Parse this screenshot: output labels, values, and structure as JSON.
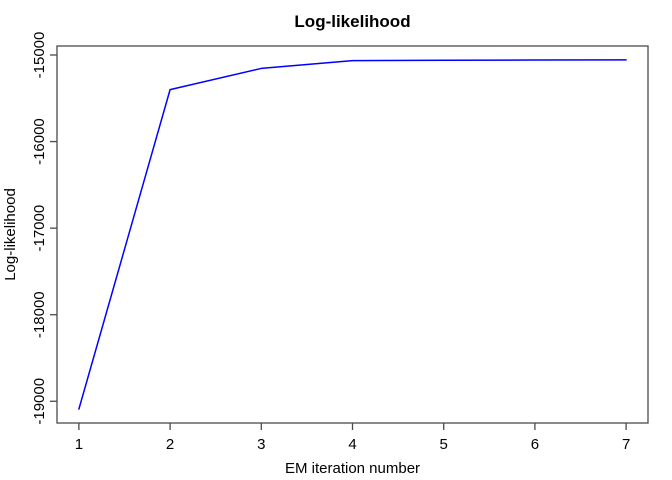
{
  "chart_data": {
    "type": "line",
    "title": "Log-likelihood",
    "xlabel": "EM iteration number",
    "ylabel": "Log-likelihood",
    "x": [
      1,
      2,
      3,
      4,
      5,
      6,
      7
    ],
    "y": [
      -19090,
      -15400,
      -15155,
      -15065,
      -15060,
      -15058,
      -15057
    ],
    "x_ticks": [
      1,
      2,
      3,
      4,
      5,
      6,
      7
    ],
    "x_tick_labels": [
      "1",
      "2",
      "3",
      "4",
      "5",
      "6",
      "7"
    ],
    "y_ticks": [
      -19000,
      -18000,
      -17000,
      -16000,
      -15000
    ],
    "y_tick_labels": [
      "-19000",
      "-18000",
      "-17000",
      "-16000",
      "-15000"
    ],
    "xlim": [
      0.76,
      7.24
    ],
    "ylim": [
      -19251,
      -14896
    ],
    "grid": false,
    "legend": "none",
    "line_color": "#0000FF",
    "axis_color": "#4a4a4a",
    "text_color": "#000000",
    "background": "#FFFFFF"
  }
}
